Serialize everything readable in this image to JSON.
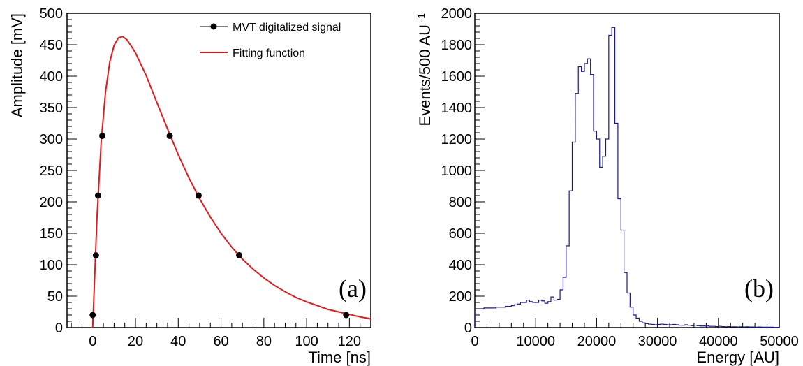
{
  "chart_data": [
    {
      "type": "scatter",
      "panel_label": "(a)",
      "xlabel": "Time [ns]",
      "ylabel": "Amplitude [mV]",
      "xlim": [
        -12,
        130
      ],
      "ylim": [
        0,
        500
      ],
      "xticks": [
        0,
        20,
        40,
        60,
        80,
        100,
        120
      ],
      "yticks": [
        0,
        50,
        100,
        150,
        200,
        250,
        300,
        350,
        400,
        450,
        500
      ],
      "legend_position": "top-right",
      "series": [
        {
          "name": "MVT digitalized signal",
          "kind": "points",
          "color": "#000000",
          "x": [
            0,
            1.5,
            2.5,
            4.5,
            36,
            49.5,
            68.5,
            118.5
          ],
          "y": [
            20,
            115,
            210,
            305,
            305,
            210,
            115,
            20
          ]
        },
        {
          "name": "Fitting function",
          "kind": "line",
          "color": "#e31a1c",
          "x": [
            0,
            2,
            4,
            6,
            8,
            10,
            12,
            14,
            16,
            18,
            20,
            25,
            30,
            35,
            40,
            45,
            50,
            55,
            60,
            65,
            70,
            75,
            80,
            85,
            90,
            95,
            100,
            105,
            110,
            115,
            120,
            125,
            130
          ],
          "y": [
            0,
            175,
            297,
            375,
            423,
            449,
            461,
            463,
            458,
            448,
            437,
            401,
            358,
            316,
            275,
            238,
            205,
            176,
            150,
            128,
            109,
            93,
            79,
            67,
            57,
            48,
            41,
            35,
            29,
            25,
            21,
            17,
            14
          ]
        }
      ]
    },
    {
      "type": "histogram",
      "panel_label": "(b)",
      "xlabel": "Energy [AU]",
      "ylabel": "Events/500 AU",
      "ylabel_superscript": "-1",
      "xlim": [
        0,
        50000
      ],
      "ylim": [
        0,
        2000
      ],
      "bin_width": 500,
      "xticks": [
        0,
        10000,
        20000,
        30000,
        40000,
        50000
      ],
      "yticks": [
        0,
        200,
        400,
        600,
        800,
        1000,
        1200,
        1400,
        1600,
        1800,
        2000
      ],
      "color": "#1a1a8c",
      "values": [
        120,
        120,
        120,
        125,
        125,
        125,
        125,
        130,
        130,
        130,
        135,
        135,
        140,
        145,
        150,
        160,
        160,
        175,
        165,
        160,
        160,
        175,
        170,
        155,
        165,
        195,
        175,
        180,
        240,
        320,
        520,
        870,
        1180,
        1490,
        1660,
        1630,
        1680,
        1710,
        1610,
        1250,
        1200,
        1020,
        1090,
        1200,
        1860,
        1910,
        1300,
        820,
        620,
        350,
        220,
        130,
        80,
        60,
        40,
        30,
        25,
        22,
        20,
        18,
        20,
        22,
        20,
        18,
        18,
        20,
        18,
        15,
        15,
        18,
        15,
        12,
        15,
        12,
        10,
        10,
        10,
        8,
        8,
        6,
        8,
        6,
        5,
        6,
        5,
        5,
        4,
        5,
        4,
        5,
        4,
        4,
        3,
        4,
        3,
        3,
        3,
        3,
        2,
        2
      ]
    }
  ]
}
